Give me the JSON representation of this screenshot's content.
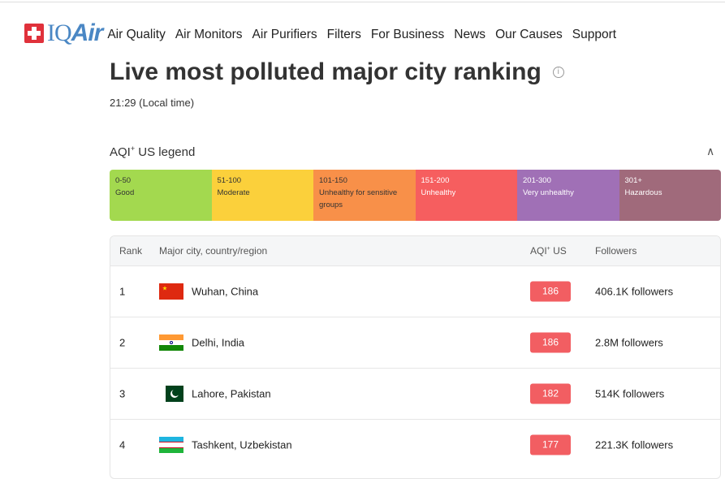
{
  "brand": {
    "name_plain": "IQ",
    "name_italic": "Air"
  },
  "nav": [
    "Air Quality",
    "Air Monitors",
    "Air Purifiers",
    "Filters",
    "For Business",
    "News",
    "Our Causes",
    "Support"
  ],
  "title": "Live most polluted major city ranking",
  "time": "21:29 (Local time)",
  "legend": {
    "title_a": "AQI",
    "title_sup": "+",
    "title_b": " US legend",
    "items": [
      {
        "range": "0-50",
        "label": "Good",
        "color": "#a3d94f"
      },
      {
        "range": "51-100",
        "label": "Moderate",
        "color": "#fbd03b"
      },
      {
        "range": "101-150",
        "label": "Unhealthy for sensitive groups",
        "color": "#f89049"
      },
      {
        "range": "151-200",
        "label": "Unhealthy",
        "color": "#f65e5f"
      },
      {
        "range": "201-300",
        "label": "Very unhealthy",
        "color": "#a070b6"
      },
      {
        "range": "301+",
        "label": "Hazardous",
        "color": "#a06a7b"
      }
    ]
  },
  "table": {
    "headers": {
      "rank": "Rank",
      "city": "Major city, country/region",
      "aqi": "AQI",
      "aqi_sup": "+",
      "aqi_b": " US",
      "followers": "Followers"
    },
    "rows": [
      {
        "rank": "1",
        "city": "Wuhan, China",
        "aqi": "186",
        "followers": "406.1K followers",
        "flag": "china"
      },
      {
        "rank": "2",
        "city": "Delhi, India",
        "aqi": "186",
        "followers": "2.8M followers",
        "flag": "india"
      },
      {
        "rank": "3",
        "city": "Lahore, Pakistan",
        "aqi": "182",
        "followers": "514K followers",
        "flag": "pakistan"
      },
      {
        "rank": "4",
        "city": "Tashkent, Uzbekistan",
        "aqi": "177",
        "followers": "221.3K followers",
        "flag": "uzbekistan"
      }
    ]
  }
}
